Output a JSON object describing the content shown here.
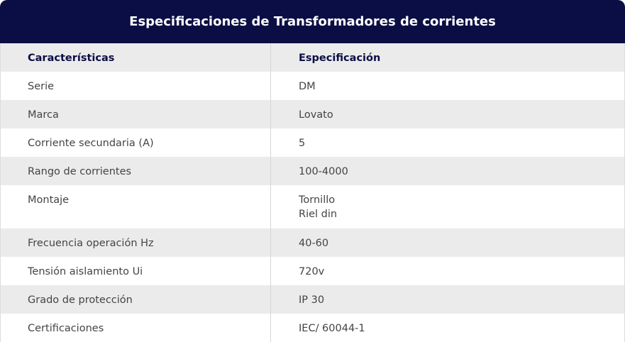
{
  "header": {
    "title": "Especificaciones de Transformadores de corrientes"
  },
  "table": {
    "columns": [
      "Características",
      "Especificación"
    ],
    "rows": [
      [
        "Serie",
        "DM"
      ],
      [
        "Marca",
        "Lovato"
      ],
      [
        "Corriente secundaria (A)",
        "5"
      ],
      [
        "Rango de corrientes",
        "100-4000"
      ],
      [
        "Montaje",
        [
          "Tornillo",
          "Riel din"
        ]
      ],
      [
        "Frecuencia operación Hz",
        "40-60"
      ],
      [
        "Tensión aislamiento Ui",
        "720v"
      ],
      [
        "Grado de protección",
        "IP 30"
      ],
      [
        "Certificaciones",
        "IEC/ 60044-1"
      ]
    ]
  }
}
